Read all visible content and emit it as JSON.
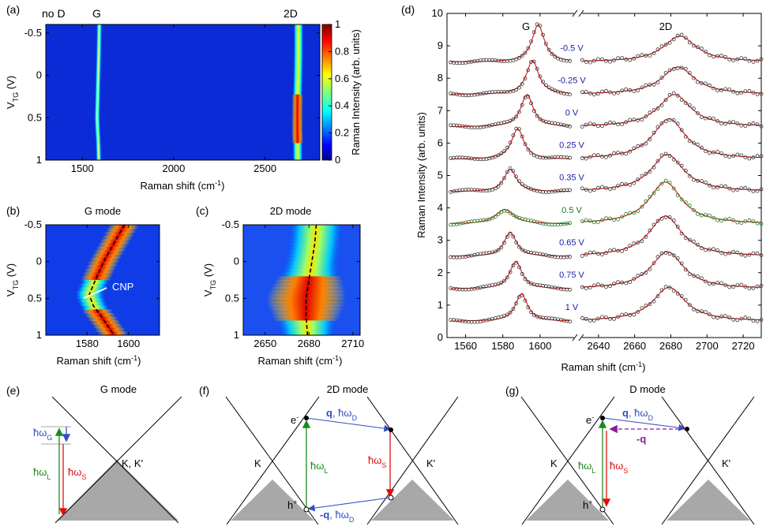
{
  "chart_data": [
    {
      "panel": "(a)",
      "type": "heatmap",
      "title": "",
      "xlabel": "Raman shift (cm",
      "xlabel_sup": "-1",
      "xlabel_close": ")",
      "ylabel": "V",
      "ylabel_sub": "TG",
      "ylabel_unit": " (V)",
      "xlim": [
        1300,
        2800
      ],
      "ylim": [
        -0.6,
        1.0
      ],
      "xticks": [
        1500,
        2000,
        2500
      ],
      "yticks": [
        -0.5,
        0,
        0.5,
        1
      ],
      "ytick_labels": [
        "-0.5",
        "0",
        "0.5",
        "1"
      ],
      "annotations": [
        "no D",
        "G",
        "2D"
      ],
      "peaks": [
        {
          "name": "G",
          "points": [
            [
              -0.6,
              1593
            ],
            [
              -0.25,
              1590
            ],
            [
              0,
              1587
            ],
            [
              0.25,
              1584
            ],
            [
              0.5,
              1581
            ],
            [
              0.65,
              1584
            ],
            [
              0.75,
              1587
            ],
            [
              1.0,
              1590
            ]
          ]
        },
        {
          "name": "2D",
          "points": [
            [
              -0.6,
              2683
            ],
            [
              -0.25,
              2683
            ],
            [
              0,
              2681
            ],
            [
              0.25,
              2678
            ],
            [
              0.5,
              2677
            ],
            [
              0.65,
              2677
            ],
            [
              0.75,
              2678
            ],
            [
              1.0,
              2679
            ]
          ]
        }
      ],
      "colorbar": {
        "label": "Raman Intensity (arb. units)",
        "range": [
          0,
          1
        ],
        "ticks": [
          0,
          0.2,
          0.4,
          0.6,
          0.8,
          1
        ],
        "tick_labels": [
          "0",
          "0.2",
          "0.4",
          "0.6",
          "0.8",
          "1"
        ]
      }
    },
    {
      "panel": "(b)",
      "type": "heatmap",
      "title": "G mode",
      "xlabel": "Raman shift (cm",
      "xlabel_sup": "-1",
      "xlabel_close": ")",
      "ylabel": "V",
      "ylabel_sub": "TG",
      "ylabel_unit": " (V)",
      "xlim": [
        1560,
        1615
      ],
      "ylim": [
        -0.5,
        1.0
      ],
      "xticks": [
        1580,
        1600
      ],
      "yticks": [
        -0.5,
        0,
        0.5,
        1
      ],
      "ytick_labels": [
        "-0.5",
        "0",
        "0.5",
        "1"
      ],
      "annotation": "CNP",
      "fit_curve": [
        [
          -0.5,
          1598
        ],
        [
          -0.25,
          1593
        ],
        [
          0,
          1588
        ],
        [
          0.25,
          1584
        ],
        [
          0.45,
          1581
        ],
        [
          0.6,
          1583
        ],
        [
          0.75,
          1587
        ],
        [
          1.0,
          1593
        ]
      ]
    },
    {
      "panel": "(c)",
      "type": "heatmap",
      "title": "2D mode",
      "xlabel": "Raman shift (cm",
      "xlabel_sup": "-1",
      "xlabel_close": ")",
      "ylabel": "V",
      "ylabel_sub": "TG",
      "ylabel_unit": " (V)",
      "xlim": [
        2635,
        2715
      ],
      "ylim": [
        -0.5,
        1.0
      ],
      "xticks": [
        2650,
        2680,
        2710
      ],
      "yticks": [
        -0.5,
        0,
        0.5,
        1
      ],
      "ytick_labels": [
        "-0.5",
        "0",
        "0.5",
        "1"
      ],
      "fit_curve": [
        [
          -0.5,
          2685
        ],
        [
          -0.25,
          2684
        ],
        [
          0,
          2682
        ],
        [
          0.25,
          2680
        ],
        [
          0.5,
          2678
        ],
        [
          0.75,
          2678
        ],
        [
          1.0,
          2679
        ]
      ]
    },
    {
      "panel": "(d)",
      "type": "line",
      "title": "",
      "xlabel": "Raman shift (cm",
      "xlabel_sup": "-1",
      "xlabel_close": ")",
      "ylabel": "Raman Intensity (arb. units)",
      "ylim": [
        0,
        10
      ],
      "yticks": [
        0,
        1,
        2,
        3,
        4,
        5,
        6,
        7,
        8,
        9,
        10
      ],
      "left_xlim": [
        1550,
        1620
      ],
      "left_xticks": [
        1560,
        1580,
        1600
      ],
      "right_xlim": [
        2630,
        2730
      ],
      "right_xticks": [
        2640,
        2660,
        2680,
        2700,
        2720
      ],
      "peak_labels": [
        "G",
        "2D"
      ],
      "series": [
        {
          "name": "-0.5 V",
          "offset": 8.5,
          "G_pos": 1599,
          "G_amp": 1.15,
          "D2_pos": 2685,
          "D2_amp": 0.8
        },
        {
          "name": "-0.25 V",
          "offset": 7.5,
          "G_pos": 1596,
          "G_amp": 1.05,
          "D2_pos": 2684,
          "D2_amp": 0.85
        },
        {
          "name": "0 V",
          "offset": 6.5,
          "G_pos": 1593,
          "G_amp": 1.0,
          "D2_pos": 2682,
          "D2_amp": 1.0
        },
        {
          "name": "0.25 V",
          "offset": 5.5,
          "G_pos": 1588,
          "G_amp": 0.95,
          "D2_pos": 2679,
          "D2_amp": 1.25
        },
        {
          "name": "0.35 V",
          "offset": 4.5,
          "G_pos": 1584,
          "G_amp": 0.7,
          "D2_pos": 2678,
          "D2_amp": 1.15
        },
        {
          "name": "0.5 V",
          "offset": 3.5,
          "G_pos": 1581,
          "G_amp": 0.45,
          "D2_pos": 2677,
          "D2_amp": 1.3
        },
        {
          "name": "0.65 V",
          "offset": 2.5,
          "G_pos": 1584,
          "G_amp": 0.75,
          "D2_pos": 2677,
          "D2_amp": 1.25
        },
        {
          "name": "0.75 V",
          "offset": 1.5,
          "G_pos": 1587,
          "G_amp": 0.85,
          "D2_pos": 2678,
          "D2_amp": 1.15
        },
        {
          "name": "1 V",
          "offset": 0.5,
          "G_pos": 1590,
          "G_amp": 0.85,
          "D2_pos": 2679,
          "D2_amp": 1.05
        }
      ],
      "highlight_series": "0.5 V",
      "colors": {
        "label": "#1a1aa6",
        "highlight": "#1f7a1f",
        "fit": "#dd1111",
        "points": "#333333"
      }
    },
    {
      "panel": "(e)",
      "type": "diagram",
      "title": "G mode",
      "labels": {
        "omega_G": "ħω",
        "omega_G_sub": "G",
        "omega_L": "ħω",
        "omega_L_sub": "L",
        "omega_S": "ħω",
        "omega_S_sub": "S",
        "valley": "K, K'"
      }
    },
    {
      "panel": "(f)",
      "type": "diagram",
      "title": "2D mode",
      "labels": {
        "electron": "e",
        "electron_sup": "-",
        "hole": "h",
        "hole_sup": "+",
        "q_top": "q",
        "q_top_rest": ", ħω",
        "q_top_sub": "D",
        "q_bottom": "-q",
        "q_bottom_rest": ", ħω",
        "q_bottom_sub": "D",
        "omega_L": "ħω",
        "omega_L_sub": "L",
        "omega_S": "ħω",
        "omega_S_sub": "S",
        "valley_left": "K",
        "valley_right": "K'"
      }
    },
    {
      "panel": "(g)",
      "type": "diagram",
      "title": "D mode",
      "labels": {
        "electron": "e",
        "electron_sup": "-",
        "hole": "h",
        "hole_sup": "+",
        "q_top": "q",
        "q_top_rest": ", ħω",
        "q_top_sub": "D",
        "q_back": "-q",
        "omega_L": "ħω",
        "omega_L_sub": "L",
        "omega_S": "ħω",
        "omega_S_sub": "S",
        "valley_left": "K",
        "valley_right": "K'"
      }
    }
  ]
}
